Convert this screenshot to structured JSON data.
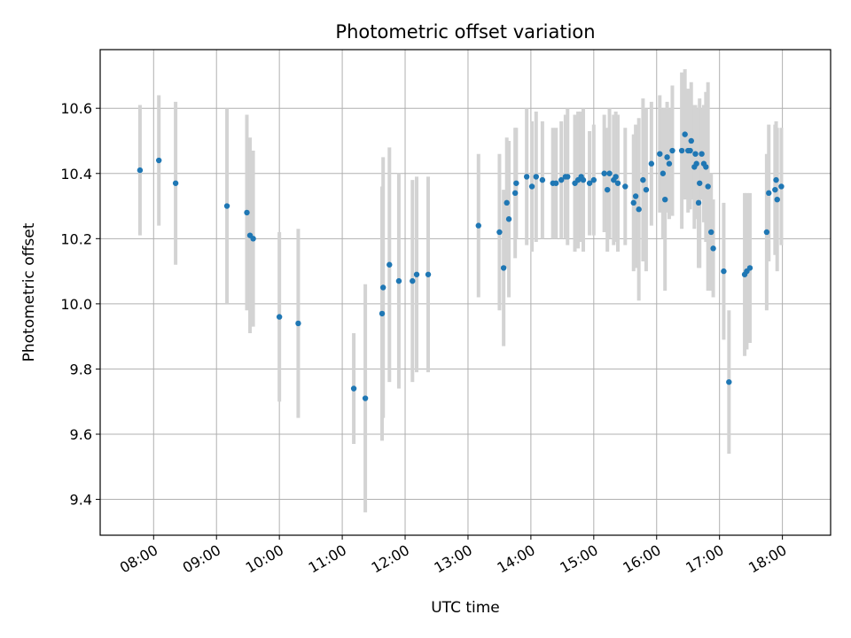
{
  "chart_data": {
    "type": "scatter",
    "title": "Photometric offset variation",
    "xlabel": "UTC time",
    "ylabel": "Photometric offset",
    "x_is_time": true,
    "xlim": [
      "07:09",
      "18:46"
    ],
    "ylim": [
      9.29,
      10.78
    ],
    "xticks": [
      "08:00",
      "09:00",
      "10:00",
      "11:00",
      "12:00",
      "13:00",
      "14:00",
      "15:00",
      "16:00",
      "17:00",
      "18:00"
    ],
    "yticks": [
      9.4,
      9.6,
      9.8,
      10.0,
      10.2,
      10.4,
      10.6
    ],
    "ytick_labels": [
      "9.4",
      "9.6",
      "9.8",
      "10.0",
      "10.2",
      "10.4",
      "10.6"
    ],
    "grid": true,
    "colors": {
      "points": "#1f77b4",
      "errorbars": "#d3d3d3",
      "grid": "#b0b0b0"
    },
    "series": [
      {
        "x": [
          "07:47",
          "08:05",
          "08:21",
          "09:10",
          "09:29",
          "09:32",
          "09:35",
          "10:00",
          "10:18",
          "11:11",
          "11:22",
          "11:38",
          "11:39",
          "11:45",
          "11:54",
          "12:07",
          "12:11",
          "12:22",
          "13:10",
          "13:30",
          "13:34",
          "13:37",
          "13:39",
          "13:45",
          "13:46",
          "13:56",
          "14:01",
          "14:05",
          "14:11",
          "14:21",
          "14:24",
          "14:29",
          "14:33",
          "14:35",
          "14:42",
          "14:45",
          "14:48",
          "14:50",
          "14:56",
          "15:00",
          "15:10",
          "15:13",
          "15:15",
          "15:19",
          "15:21",
          "15:23",
          "15:30",
          "15:38",
          "15:40",
          "15:43",
          "15:47",
          "15:50",
          "15:55",
          "16:03",
          "16:06",
          "16:08",
          "16:10",
          "16:12",
          "16:15",
          "16:24",
          "16:27",
          "16:30",
          "16:32",
          "16:33",
          "16:36",
          "16:37",
          "16:38",
          "16:40",
          "16:41",
          "16:43",
          "16:45",
          "16:47",
          "16:49",
          "16:52",
          "16:54",
          "17:04",
          "17:09",
          "17:24",
          "17:26",
          "17:29",
          "17:45",
          "17:47",
          "17:53",
          "17:54",
          "17:55",
          "17:59"
        ],
        "y": [
          10.41,
          10.44,
          10.37,
          10.3,
          10.28,
          10.21,
          10.2,
          9.96,
          9.94,
          9.74,
          9.71,
          9.97,
          10.05,
          10.12,
          10.07,
          10.07,
          10.09,
          10.09,
          10.24,
          10.22,
          10.11,
          10.31,
          10.26,
          10.34,
          10.37,
          10.39,
          10.36,
          10.39,
          10.38,
          10.37,
          10.37,
          10.38,
          10.39,
          10.39,
          10.37,
          10.38,
          10.39,
          10.38,
          10.37,
          10.38,
          10.4,
          10.35,
          10.4,
          10.38,
          10.39,
          10.37,
          10.36,
          10.31,
          10.33,
          10.29,
          10.38,
          10.35,
          10.43,
          10.46,
          10.4,
          10.32,
          10.45,
          10.43,
          10.47,
          10.47,
          10.52,
          10.47,
          10.47,
          10.5,
          10.42,
          10.46,
          10.43,
          10.31,
          10.37,
          10.46,
          10.43,
          10.42,
          10.36,
          10.22,
          10.17,
          10.1,
          9.76,
          10.09,
          10.1,
          10.11,
          10.22,
          10.34,
          10.35,
          10.38,
          10.32,
          10.36
        ],
        "yerr": [
          0.2,
          0.2,
          0.25,
          0.3,
          0.3,
          0.3,
          0.27,
          0.26,
          0.29,
          0.17,
          0.35,
          0.39,
          0.4,
          0.36,
          0.33,
          0.31,
          0.3,
          0.3,
          0.22,
          0.24,
          0.24,
          0.2,
          0.24,
          0.2,
          0.17,
          0.21,
          0.2,
          0.2,
          0.18,
          0.17,
          0.17,
          0.18,
          0.19,
          0.21,
          0.21,
          0.21,
          0.2,
          0.22,
          0.16,
          0.17,
          0.18,
          0.19,
          0.2,
          0.2,
          0.2,
          0.21,
          0.18,
          0.21,
          0.22,
          0.28,
          0.25,
          0.25,
          0.19,
          0.18,
          0.2,
          0.28,
          0.17,
          0.17,
          0.2,
          0.24,
          0.2,
          0.19,
          0.18,
          0.18,
          0.19,
          0.15,
          0.17,
          0.2,
          0.26,
          0.14,
          0.18,
          0.23,
          0.32,
          0.18,
          0.15,
          0.21,
          0.22,
          0.25,
          0.24,
          0.23,
          0.24,
          0.21,
          0.2,
          0.18,
          0.22,
          0.18
        ]
      }
    ]
  }
}
